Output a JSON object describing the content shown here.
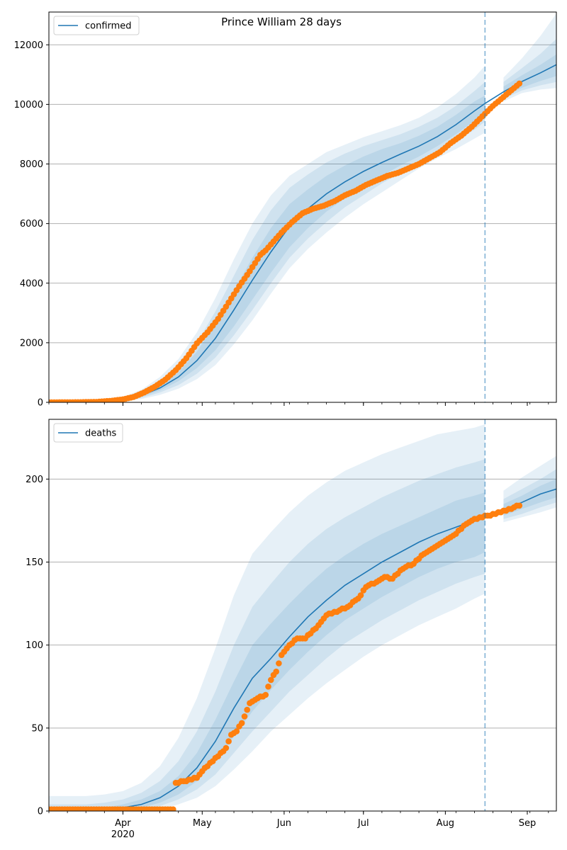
{
  "figure": {
    "title": "Prince William 28 days"
  },
  "colors": {
    "line": "#1f77b4",
    "band": "#1f77b4",
    "points": "#ff7f0e",
    "grid": "#b0b0b0",
    "forecast_line": "#1f77b4"
  },
  "chart_data": [
    {
      "type": "line",
      "panel": "top",
      "title": "Prince William 28 days",
      "legend": {
        "label": "confirmed",
        "placement": "top-left"
      },
      "x_axis": {
        "type": "date",
        "range": [
          "2020-03-04",
          "2020-09-12"
        ],
        "tick_labels": [
          {
            "date": "2020-04-01",
            "label": "Apr",
            "sublabel": "2020"
          },
          {
            "date": "2020-05-01",
            "label": "May"
          },
          {
            "date": "2020-06-01",
            "label": "Jun"
          },
          {
            "date": "2020-07-01",
            "label": "Jul"
          },
          {
            "date": "2020-08-01",
            "label": "Aug"
          },
          {
            "date": "2020-09-01",
            "label": "Sep"
          }
        ]
      },
      "y_axis": {
        "range": [
          0,
          13100
        ],
        "ticks": [
          0,
          2000,
          4000,
          6000,
          8000,
          10000,
          12000
        ]
      },
      "grid": "horizontal",
      "forecast_start": "2020-08-16",
      "model": {
        "dates": [
          "2020-03-04",
          "2020-03-11",
          "2020-03-18",
          "2020-03-25",
          "2020-04-01",
          "2020-04-08",
          "2020-04-15",
          "2020-04-22",
          "2020-04-29",
          "2020-05-06",
          "2020-05-13",
          "2020-05-20",
          "2020-05-27",
          "2020-06-03",
          "2020-06-10",
          "2020-06-17",
          "2020-06-24",
          "2020-07-01",
          "2020-07-08",
          "2020-07-15",
          "2020-07-22",
          "2020-07-29",
          "2020-08-05",
          "2020-08-12",
          "2020-08-16",
          "2020-08-23",
          "2020-08-30",
          "2020-09-06",
          "2020-09-12"
        ],
        "median": [
          0,
          5,
          15,
          40,
          90,
          230,
          480,
          850,
          1400,
          2150,
          3100,
          4100,
          5050,
          5900,
          6500,
          7000,
          7400,
          7750,
          8050,
          8330,
          8600,
          8920,
          9320,
          9780,
          10030,
          10420,
          10770,
          11060,
          11330
        ],
        "band_inner": [
          [
            0,
            0
          ],
          [
            3,
            7
          ],
          [
            10,
            20
          ],
          [
            30,
            55
          ],
          [
            70,
            115
          ],
          [
            190,
            280
          ],
          [
            400,
            580
          ],
          [
            710,
            1000
          ],
          [
            1150,
            1700
          ],
          [
            1750,
            2650
          ],
          [
            2550,
            3750
          ],
          [
            3450,
            4850
          ],
          [
            4350,
            5850
          ],
          [
            5200,
            6650
          ],
          [
            5850,
            7150
          ],
          [
            6400,
            7600
          ],
          [
            6850,
            7950
          ],
          [
            7250,
            8250
          ],
          [
            7600,
            8500
          ],
          [
            7950,
            8700
          ],
          [
            8250,
            8950
          ],
          [
            8600,
            9250
          ],
          [
            9000,
            9650
          ],
          [
            9450,
            10100
          ],
          [
            9780,
            10300
          ],
          [
            10250,
            10600
          ],
          [
            10560,
            10980
          ],
          [
            10790,
            11330
          ],
          [
            10950,
            11680
          ]
        ],
        "band_mid": [
          [
            0,
            0
          ],
          [
            2,
            9
          ],
          [
            7,
            26
          ],
          [
            22,
            70
          ],
          [
            55,
            145
          ],
          [
            150,
            340
          ],
          [
            330,
            700
          ],
          [
            580,
            1200
          ],
          [
            960,
            2000
          ],
          [
            1500,
            3050
          ],
          [
            2250,
            4250
          ],
          [
            3100,
            5450
          ],
          [
            4000,
            6450
          ],
          [
            4850,
            7200
          ],
          [
            5500,
            7650
          ],
          [
            6050,
            8050
          ],
          [
            6550,
            8350
          ],
          [
            6950,
            8600
          ],
          [
            7350,
            8800
          ],
          [
            7700,
            9000
          ],
          [
            8050,
            9250
          ],
          [
            8400,
            9550
          ],
          [
            8750,
            9950
          ],
          [
            9150,
            10450
          ],
          [
            9420,
            10750
          ],
          [
            10180,
            10750
          ],
          [
            10470,
            11220
          ],
          [
            10640,
            11700
          ],
          [
            10750,
            12200
          ]
        ],
        "band_outer": [
          [
            0,
            0
          ],
          [
            1,
            12
          ],
          [
            5,
            35
          ],
          [
            15,
            90
          ],
          [
            40,
            180
          ],
          [
            110,
            420
          ],
          [
            250,
            850
          ],
          [
            460,
            1450
          ],
          [
            780,
            2350
          ],
          [
            1250,
            3500
          ],
          [
            1950,
            4800
          ],
          [
            2750,
            6000
          ],
          [
            3650,
            6950
          ],
          [
            4500,
            7600
          ],
          [
            5150,
            8000
          ],
          [
            5700,
            8400
          ],
          [
            6200,
            8650
          ],
          [
            6650,
            8900
          ],
          [
            7050,
            9100
          ],
          [
            7450,
            9300
          ],
          [
            7850,
            9550
          ],
          [
            8200,
            9900
          ],
          [
            8500,
            10350
          ],
          [
            8850,
            10900
          ],
          [
            9050,
            11300
          ],
          [
            10100,
            10900
          ],
          [
            10380,
            11550
          ],
          [
            10500,
            12300
          ],
          [
            10550,
            13050
          ]
        ]
      },
      "observed": {
        "dates": [
          "2020-03-04",
          "2020-03-10",
          "2020-03-16",
          "2020-03-22",
          "2020-03-28",
          "2020-04-01",
          "2020-04-05",
          "2020-04-09",
          "2020-04-13",
          "2020-04-17",
          "2020-04-21",
          "2020-04-25",
          "2020-04-29",
          "2020-05-03",
          "2020-05-07",
          "2020-05-11",
          "2020-05-15",
          "2020-05-19",
          "2020-05-23",
          "2020-05-25",
          "2020-05-27",
          "2020-05-31",
          "2020-06-04",
          "2020-06-08",
          "2020-06-12",
          "2020-06-16",
          "2020-06-20",
          "2020-06-24",
          "2020-06-28",
          "2020-07-02",
          "2020-07-06",
          "2020-07-10",
          "2020-07-14",
          "2020-07-18",
          "2020-07-22",
          "2020-07-26",
          "2020-07-30",
          "2020-08-03",
          "2020-08-07",
          "2020-08-11",
          "2020-08-15",
          "2020-08-19",
          "2020-08-23",
          "2020-08-27",
          "2020-08-29"
        ],
        "values": [
          0,
          2,
          5,
          15,
          55,
          100,
          180,
          330,
          520,
          760,
          1080,
          1480,
          1980,
          2350,
          2800,
          3350,
          3900,
          4400,
          4950,
          5100,
          5300,
          5700,
          6050,
          6350,
          6500,
          6600,
          6750,
          6950,
          7100,
          7300,
          7450,
          7600,
          7700,
          7850,
          8000,
          8200,
          8400,
          8700,
          8950,
          9250,
          9600,
          9950,
          10250,
          10550,
          10700
        ]
      }
    },
    {
      "type": "line",
      "panel": "bottom",
      "legend": {
        "label": "deaths",
        "placement": "top-left"
      },
      "x_axis": {
        "type": "date",
        "range": [
          "2020-03-04",
          "2020-09-12"
        ],
        "tick_labels": [
          {
            "date": "2020-04-01",
            "label": "Apr",
            "sublabel": "2020"
          },
          {
            "date": "2020-05-01",
            "label": "May"
          },
          {
            "date": "2020-06-01",
            "label": "Jun"
          },
          {
            "date": "2020-07-01",
            "label": "Jul"
          },
          {
            "date": "2020-08-01",
            "label": "Aug"
          },
          {
            "date": "2020-09-01",
            "label": "Sep"
          }
        ]
      },
      "y_axis": {
        "range": [
          0,
          236
        ],
        "ticks": [
          0,
          50,
          100,
          150,
          200
        ]
      },
      "grid": "horizontal",
      "forecast_start": "2020-08-16",
      "model": {
        "dates": [
          "2020-03-04",
          "2020-03-11",
          "2020-03-18",
          "2020-03-25",
          "2020-04-01",
          "2020-04-08",
          "2020-04-15",
          "2020-04-22",
          "2020-04-29",
          "2020-05-06",
          "2020-05-13",
          "2020-05-20",
          "2020-05-27",
          "2020-06-03",
          "2020-06-10",
          "2020-06-17",
          "2020-06-24",
          "2020-07-01",
          "2020-07-08",
          "2020-07-15",
          "2020-07-22",
          "2020-07-29",
          "2020-08-05",
          "2020-08-12",
          "2020-08-16",
          "2020-08-23",
          "2020-08-30",
          "2020-09-06",
          "2020-09-12"
        ],
        "median": [
          0,
          0,
          0,
          1,
          2,
          4,
          8,
          15,
          26,
          42,
          62,
          80,
          92,
          105,
          117,
          127,
          136,
          143,
          150,
          156,
          162,
          167,
          171,
          175,
          177,
          181,
          186,
          191,
          194
        ],
        "band_inner": [
          [
            0,
            1
          ],
          [
            0,
            1
          ],
          [
            0,
            1
          ],
          [
            0,
            2
          ],
          [
            1,
            4
          ],
          [
            2,
            7
          ],
          [
            5,
            12
          ],
          [
            10,
            21
          ],
          [
            18,
            35
          ],
          [
            30,
            55
          ],
          [
            45,
            78
          ],
          [
            60,
            100
          ],
          [
            73,
            113
          ],
          [
            85,
            125
          ],
          [
            96,
            136
          ],
          [
            106,
            146
          ],
          [
            115,
            154
          ],
          [
            122,
            161
          ],
          [
            129,
            167
          ],
          [
            135,
            172
          ],
          [
            141,
            177
          ],
          [
            146,
            182
          ],
          [
            150,
            187
          ],
          [
            153,
            190
          ],
          [
            156,
            192
          ],
          [
            178,
            185
          ],
          [
            182,
            190
          ],
          [
            186,
            196
          ],
          [
            189,
            200
          ]
        ],
        "band_mid": [
          [
            0,
            4
          ],
          [
            0,
            4
          ],
          [
            0,
            4
          ],
          [
            0,
            5
          ],
          [
            0,
            7
          ],
          [
            1,
            11
          ],
          [
            3,
            18
          ],
          [
            7,
            30
          ],
          [
            13,
            48
          ],
          [
            22,
            72
          ],
          [
            35,
            100
          ],
          [
            48,
            123
          ],
          [
            60,
            137
          ],
          [
            72,
            150
          ],
          [
            82,
            161
          ],
          [
            92,
            170
          ],
          [
            101,
            177
          ],
          [
            108,
            183
          ],
          [
            115,
            189
          ],
          [
            121,
            194
          ],
          [
            127,
            199
          ],
          [
            132,
            203
          ],
          [
            137,
            207
          ],
          [
            141,
            210
          ],
          [
            143,
            212
          ],
          [
            176,
            188
          ],
          [
            179,
            194
          ],
          [
            183,
            200
          ],
          [
            186,
            206
          ]
        ],
        "band_outer": [
          [
            0,
            9
          ],
          [
            0,
            9
          ],
          [
            0,
            9
          ],
          [
            0,
            10
          ],
          [
            0,
            12
          ],
          [
            0,
            17
          ],
          [
            1,
            27
          ],
          [
            4,
            44
          ],
          [
            8,
            68
          ],
          [
            15,
            98
          ],
          [
            25,
            130
          ],
          [
            36,
            155
          ],
          [
            48,
            168
          ],
          [
            58,
            180
          ],
          [
            68,
            190
          ],
          [
            77,
            198
          ],
          [
            85,
            205
          ],
          [
            93,
            210
          ],
          [
            100,
            215
          ],
          [
            106,
            219
          ],
          [
            112,
            223
          ],
          [
            117,
            227
          ],
          [
            122,
            229
          ],
          [
            128,
            231
          ],
          [
            131,
            233
          ],
          [
            174,
            193
          ],
          [
            177,
            201
          ],
          [
            180,
            208
          ],
          [
            183,
            214
          ]
        ]
      },
      "observed": {
        "dates": [
          "2020-03-04",
          "2020-03-15",
          "2020-03-25",
          "2020-04-01",
          "2020-04-10",
          "2020-04-20",
          "2020-04-21",
          "2020-04-25",
          "2020-04-29",
          "2020-05-01",
          "2020-05-04",
          "2020-05-07",
          "2020-05-10",
          "2020-05-12",
          "2020-05-14",
          "2020-05-16",
          "2020-05-19",
          "2020-05-22",
          "2020-05-25",
          "2020-05-27",
          "2020-05-29",
          "2020-05-31",
          "2020-06-03",
          "2020-06-06",
          "2020-06-09",
          "2020-06-13",
          "2020-06-17",
          "2020-06-21",
          "2020-06-25",
          "2020-06-29",
          "2020-07-02",
          "2020-07-06",
          "2020-07-09",
          "2020-07-12",
          "2020-07-16",
          "2020-07-20",
          "2020-07-24",
          "2020-07-28",
          "2020-08-01",
          "2020-08-05",
          "2020-08-08",
          "2020-08-11",
          "2020-08-14",
          "2020-08-18",
          "2020-08-22",
          "2020-08-27",
          "2020-08-29"
        ],
        "values": [
          1,
          1,
          1,
          1,
          1,
          1,
          17,
          18,
          20,
          24,
          29,
          33,
          38,
          46,
          48,
          53,
          65,
          68,
          70,
          79,
          84,
          94,
          100,
          104,
          104,
          110,
          118,
          120,
          123,
          128,
          135,
          138,
          141,
          140,
          146,
          149,
          155,
          159,
          163,
          167,
          172,
          175,
          177,
          178,
          180,
          183,
          184
        ]
      }
    }
  ]
}
